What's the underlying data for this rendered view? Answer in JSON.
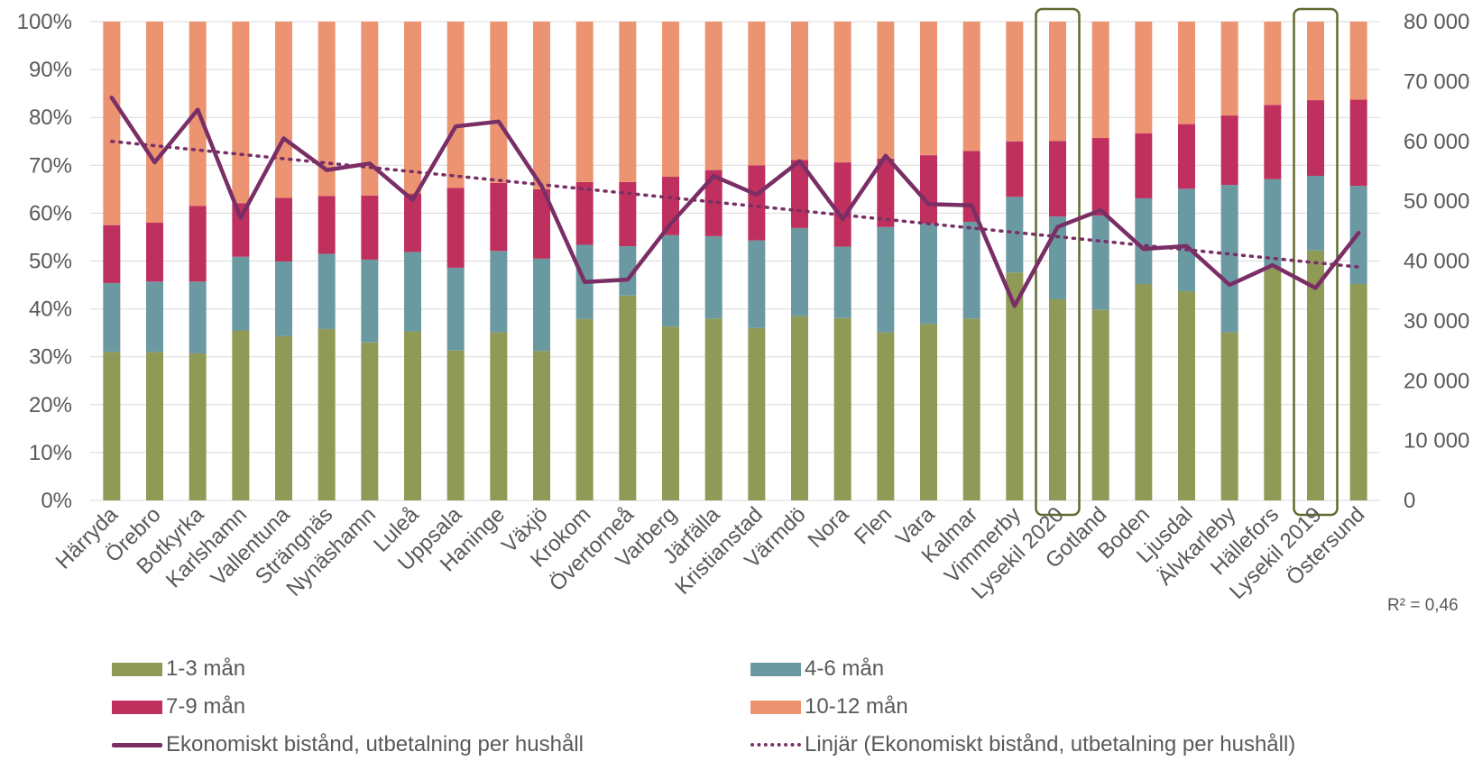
{
  "chart_data": {
    "type": "bar",
    "stacked": true,
    "categories": [
      "Härryda",
      "Örebro",
      "Botkyrka",
      "Karlshamn",
      "Vallentuna",
      "Strängnäs",
      "Nynäshamn",
      "Luleå",
      "Uppsala",
      "Haninge",
      "Växjö",
      "Krokom",
      "Övertorneå",
      "Varberg",
      "Järfälla",
      "Kristianstad",
      "Värmdö",
      "Nora",
      "Flen",
      "Vara",
      "Kalmar",
      "Vimmerby",
      "Lysekil 2020",
      "Gotland",
      "Boden",
      "Ljusdal",
      "Älvkarleby",
      "Hällefors",
      "Lysekil 2019",
      "Östersund"
    ],
    "series": [
      {
        "name": "1-3 mån",
        "color": "#8f9a56",
        "values": [
          31,
          31,
          30.7,
          35.5,
          34.3,
          35.8,
          33,
          35.3,
          31.3,
          35.1,
          31.2,
          37.9,
          42.8,
          36.3,
          38,
          36,
          38.5,
          38.1,
          35.1,
          36.8,
          38,
          47.6,
          42,
          39.8,
          45.2,
          43.7,
          35.1,
          48.6,
          52.2,
          45.2
        ]
      },
      {
        "name": "4-6 mån",
        "color": "#6b99a2",
        "values": [
          14.4,
          14.7,
          15,
          15.4,
          15.6,
          15.7,
          17.3,
          16.6,
          17.3,
          17,
          19.3,
          15.5,
          10.3,
          19.1,
          17.2,
          18.3,
          18.4,
          14.9,
          22,
          21.1,
          20.2,
          15.8,
          17.3,
          19.7,
          17.9,
          21.4,
          30.8,
          18.5,
          15.6,
          20.5
        ]
      },
      {
        "name": "7-9 mån",
        "color": "#c0305e",
        "values": [
          12.1,
          12.3,
          15.8,
          11.2,
          13.3,
          12.1,
          13.4,
          12.2,
          16.7,
          14.2,
          14.5,
          13.1,
          13.4,
          12.2,
          13.8,
          15.7,
          14.2,
          17.6,
          14.3,
          14.2,
          14.8,
          11.6,
          15.8,
          16.2,
          13.6,
          13.5,
          14.5,
          15.5,
          15.8,
          18
        ]
      },
      {
        "name": "10-12 mån",
        "color": "#ec9472",
        "values": [
          42.5,
          42,
          38.5,
          37.9,
          36.8,
          36.4,
          36.3,
          35.9,
          34.7,
          33.7,
          35,
          33.5,
          33.5,
          32.4,
          31,
          30,
          28.9,
          29.4,
          28.6,
          27.9,
          27,
          25,
          24.9,
          24.3,
          23.3,
          21.4,
          19.6,
          17.4,
          16.4,
          16.3
        ]
      }
    ],
    "line_series": {
      "name": "Ekonomiskt bistånd, utbetalning per hushåll",
      "color": "#7a2e66",
      "axis": "right",
      "values": [
        67300,
        56500,
        65300,
        47200,
        60500,
        55200,
        56300,
        50200,
        62500,
        63300,
        52500,
        36500,
        36900,
        46200,
        54200,
        51100,
        56700,
        47000,
        57600,
        49500,
        49300,
        32500,
        45700,
        48500,
        42000,
        42500,
        36000,
        39300,
        35500,
        44700
      ]
    },
    "trendline": {
      "name": "Linjär (Ekonomiskt bistånd, utbetalning per hushåll)",
      "start": 60000,
      "end": 39000,
      "r2_label": "R² = 0,46"
    },
    "y_left": {
      "min": 0,
      "max": 100,
      "ticks": [
        "0%",
        "10%",
        "20%",
        "30%",
        "40%",
        "50%",
        "60%",
        "70%",
        "80%",
        "90%",
        "100%"
      ]
    },
    "y_right": {
      "min": 0,
      "max": 80000,
      "ticks": [
        "0",
        "10 000",
        "20 000",
        "30 000",
        "40 000",
        "50 000",
        "60 000",
        "70 000",
        "80 000"
      ]
    },
    "highlighted": [
      "Lysekil 2020",
      "Lysekil 2019"
    ],
    "highlight_color": "#5f6b2e",
    "grid": true,
    "legend_position": "bottom"
  },
  "legend": {
    "s1": "1-3 mån",
    "s2": "4-6 mån",
    "s3": "7-9 mån",
    "s4": "10-12 mån",
    "line": "Ekonomiskt bistånd, utbetalning per hushåll",
    "trend": "Linjär (Ekonomiskt bistånd, utbetalning per hushåll)"
  },
  "r2": "R² = 0,46"
}
